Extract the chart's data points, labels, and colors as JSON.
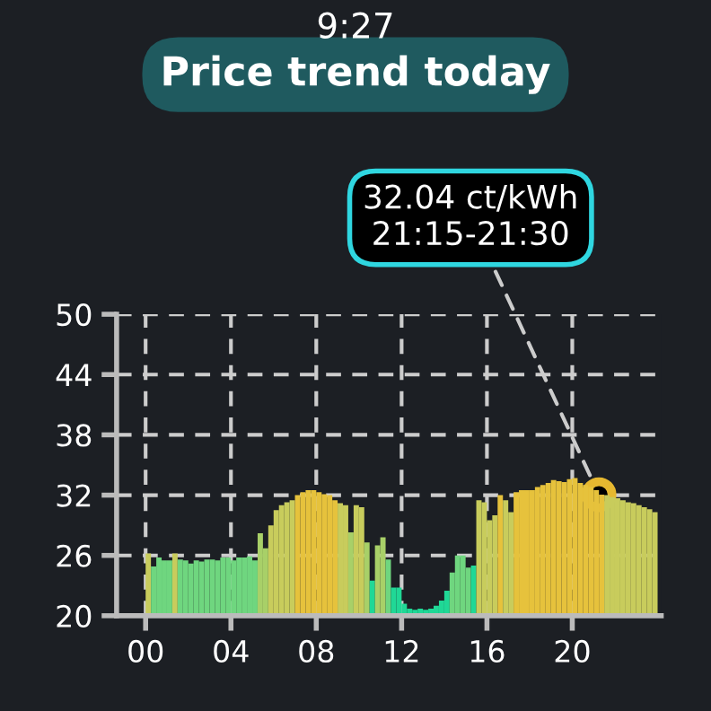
{
  "chart_data": {
    "type": "bar",
    "title": "Price trend today",
    "annotations": [
      "9:27",
      {
        "text": "32.04 ct/kWh\n21:15-21:30",
        "x": 21.25,
        "y": 32.04
      }
    ],
    "x": [
      0,
      0.25,
      0.5,
      0.75,
      1,
      1.25,
      1.5,
      1.75,
      2,
      2.25,
      2.5,
      2.75,
      3,
      3.25,
      3.5,
      3.75,
      4,
      4.25,
      4.5,
      4.75,
      5,
      5.25,
      5.5,
      5.75,
      6,
      6.25,
      6.5,
      6.75,
      7,
      7.25,
      7.5,
      7.75,
      8,
      8.25,
      8.5,
      8.75,
      9,
      9.25,
      9.5,
      9.75,
      10,
      10.25,
      10.5,
      10.75,
      11,
      11.25,
      11.5,
      11.75,
      12,
      12.25,
      12.5,
      12.75,
      13,
      13.25,
      13.5,
      13.75,
      14,
      14.25,
      14.5,
      14.75,
      15,
      15.25,
      15.5,
      15.75,
      16,
      16.25,
      16.5,
      16.75,
      17,
      17.25,
      17.5,
      17.75,
      18,
      18.25,
      18.5,
      18.75,
      19,
      19.25,
      19.5,
      19.75,
      20,
      20.25,
      20.5,
      20.75,
      21,
      21.25,
      21.5,
      21.75,
      22,
      22.25,
      22.5,
      22.75,
      23,
      23.25,
      23.5,
      23.75
    ],
    "values": [
      26.2,
      24.9,
      25.8,
      25.5,
      25.5,
      26.2,
      25.6,
      25.5,
      25.2,
      25.5,
      25.4,
      25.6,
      25.6,
      25.5,
      25.8,
      25.8,
      25.5,
      25.8,
      25.8,
      25.9,
      25.5,
      28.2,
      26.7,
      29,
      30.5,
      31,
      31.3,
      31.5,
      32,
      32.3,
      32.5,
      32.5,
      32.3,
      32.1,
      32,
      31.5,
      31.2,
      31,
      28.3,
      31,
      30.8,
      27.3,
      23.5,
      27,
      27.8,
      25.6,
      22.8,
      22.8,
      21.2,
      20.7,
      20.6,
      20.7,
      20.6,
      20.7,
      21,
      21.5,
      22.5,
      24.3,
      26,
      26,
      24.8,
      25,
      31.5,
      31.3,
      29.5,
      30,
      32,
      31.5,
      30.3,
      32.3,
      32.5,
      32.5,
      32.5,
      32.8,
      33,
      33.2,
      33.5,
      33.4,
      33.3,
      33.6,
      33.7,
      33.2,
      33,
      32.8,
      32.5,
      32.04,
      32,
      31.8,
      31.7,
      31.5,
      31.3,
      31.2,
      31,
      30.8,
      30.6,
      30.3
    ],
    "colors": [
      "#c8cc5c",
      "#6fd67f",
      "#6fd67f",
      "#6fd67f",
      "#6fd67f",
      "#c8cc5c",
      "#6fd67f",
      "#6fd67f",
      "#6fd67f",
      "#6fd67f",
      "#6fd67f",
      "#6fd67f",
      "#6fd67f",
      "#6fd67f",
      "#6fd67f",
      "#6fd67f",
      "#6fd67f",
      "#6fd67f",
      "#6fd67f",
      "#6fd67f",
      "#6fd67f",
      "#a8d068",
      "#a8d068",
      "#c8cc5c",
      "#c8cc5c",
      "#c8cc5c",
      "#c8cc5c",
      "#c8cc5c",
      "#e6c23c",
      "#e6c23c",
      "#e6c23c",
      "#e6c23c",
      "#e6c23c",
      "#e6c23c",
      "#e6c23c",
      "#e6c23c",
      "#c8cc5c",
      "#c8cc5c",
      "#a8d068",
      "#c8cc5c",
      "#c8cc5c",
      "#a8d068",
      "#20d896",
      "#a8d068",
      "#a8d068",
      "#6fd67f",
      "#20d896",
      "#20d896",
      "#20d896",
      "#20d896",
      "#20d896",
      "#20d896",
      "#20d896",
      "#20d896",
      "#20d896",
      "#20d896",
      "#20d896",
      "#6fd67f",
      "#6fd67f",
      "#6fd67f",
      "#6fd67f",
      "#20d896",
      "#c8cc5c",
      "#c8cc5c",
      "#c8cc5c",
      "#c8cc5c",
      "#e6c23c",
      "#c8cc5c",
      "#c8cc5c",
      "#e6c23c",
      "#e6c23c",
      "#e6c23c",
      "#e6c23c",
      "#e6c23c",
      "#e6c23c",
      "#e6c23c",
      "#e6c23c",
      "#e6c23c",
      "#e6c23c",
      "#e6c23c",
      "#e6c23c",
      "#e6c23c",
      "#e6c23c",
      "#e6c23c",
      "#e6c23c",
      "#e6c23c",
      "#c8cc5c",
      "#c8cc5c",
      "#c8cc5c",
      "#c8cc5c",
      "#c8cc5c",
      "#c8cc5c",
      "#c8cc5c",
      "#c8cc5c",
      "#c8cc5c",
      "#c8cc5c"
    ],
    "xlim": [
      -1.36,
      24.17
    ],
    "xticks": [
      {
        "value": 0,
        "label": "00"
      },
      {
        "value": 4,
        "label": "04"
      },
      {
        "value": 8,
        "label": "08"
      },
      {
        "value": 12,
        "label": "12"
      },
      {
        "value": 16,
        "label": "16"
      },
      {
        "value": 20,
        "label": "20"
      }
    ],
    "ylim": [
      20,
      50
    ],
    "yticks": [
      20,
      26,
      32,
      38,
      44,
      50
    ],
    "grid": true
  }
}
